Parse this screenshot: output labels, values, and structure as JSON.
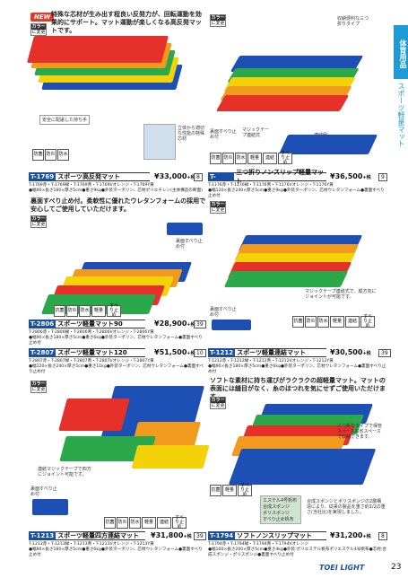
{
  "sidebar": {
    "tab": "体育用品",
    "text": "スポーツ軽量マット"
  },
  "badges": {
    "new": "NEW",
    "color": "カラー",
    "color_sub": "に変更"
  },
  "p1769": {
    "lead": "特殊な芯材が生み出す程良い反発力が、回転運動を効果的にサポート。マット運動が楽しくなる高反発マットです。",
    "caption1": "安全に配慮した持ち手",
    "caption2": "立体から適切な性能の特殊芯材",
    "icons": [
      "防菌",
      "防炎",
      "防水"
    ],
    "code": "T-1769",
    "name": "スポーツ高反発マット",
    "price": "¥33,000",
    "tax": "+税",
    "page": "8",
    "spec1": "T-1769赤・T-1769緑・T-1769青・T-1769Vオレンジ・T-1769Y黄",
    "spec2": "●幅90×長さ180×厚さ5cm●重さ9kg●外装ターポリン、芯材ポリエチレン(主体構造の断面)"
  },
  "p1176": {
    "caption1": "収納便利な三つ折りタイプ",
    "caption2": "裏面すべり止め付",
    "caption3": "マジックテープ連結式",
    "caption4": "連結例",
    "icons": [
      "防菌",
      "防炎",
      "防水",
      "軽量",
      "連結",
      "すべり止め"
    ],
    "code": "T-1176",
    "name": "三つ折りノンスリップ軽量マット",
    "price": "¥36,500",
    "tax": "+税",
    "page": "9",
    "spec1": "T-1176赤・T-1176緑・T-1176青・T-1176Vオレンジ・T-1176Y黄",
    "spec2": "●幅120×長さ240×厚さ5cm●重さ9kg●外装ターポリン、芯材ウレタンフォーム●裏面すべり止め付"
  },
  "p2806": {
    "lead": "裏面すべり止め付。柔軟性に優れたウレタンフォームの採用で安心してご使用していただけます。",
    "caption1": "裏面すべり止め付",
    "icons": [
      "抗菌",
      "防炎",
      "防水",
      "軽量",
      "すべり止め"
    ],
    "code": "T-2806",
    "name": "スポーツ軽量マット90",
    "price": "¥28,900",
    "tax": "+税",
    "page": "39",
    "spec1": "T-2806赤・T-2806緑・T-2806青・T-2806Vオレンジ・T-2806Y黄",
    "spec2": "●幅90×長さ180×厚さ5cm●重さ6kg●外装ターポリン、芯材ウレタンフォーム●裏面すべり止め付"
  },
  "p2807": {
    "code": "T-2807",
    "name": "スポーツ軽量マット120",
    "price": "¥51,500",
    "tax": "+税",
    "page": "10",
    "spec1": "T-2807赤・T-2807緑・T-2807青・T-2807Vオレンジ・T-2807Y黄",
    "spec2": "●幅120×長さ240×厚さ5cm●重さ11kg●外装ターポリン、芯材ウレタンフォーム●裏面すべり止め付"
  },
  "p1212": {
    "caption1": "マジックテープ連結式で、縦方向にジョイントが可能です。",
    "caption2": "裏面すべり止め付",
    "icons": [
      "抗菌",
      "防炎",
      "防水",
      "軽量",
      "連結",
      "すべり止め"
    ],
    "code": "T-1212",
    "name": "スポーツ軽量連結マット",
    "price": "¥30,500",
    "tax": "+税",
    "page": "39",
    "spec1": "T-1212赤・T-1212緑・T-1212青・T-1212Vオレンジ・T-1212Y黄",
    "spec2": "●幅90×長さ180×厚さ5cm●重さ6kg●外装ターポリン、芯材ウレタンフォーム●裏面すべり止め付"
  },
  "p1213": {
    "caption1": "連結マジックテープで四方にジョイント可能です。",
    "caption2": "裏面すべり止め付",
    "icons": [
      "抗菌",
      "防炎",
      "防水",
      "軽量",
      "連結",
      "すべり止め"
    ],
    "code": "T-1213",
    "name": "スポーツ軽量四方連結マット",
    "price": "¥31,800",
    "tax": "+税",
    "page": "39",
    "spec1": "T-1213赤・T-1213緑・T-1213青・T-1213Vオレンジ・T-1213Y黄",
    "spec2": "●幅90×長さ180×厚さ5cm●重さ6kg●外装ターポリン、芯材ウレタンフォーム●裏面すべり止め付"
  },
  "p1794": {
    "lead": "ソフトな素材に持ち運びがラクラクの超軽量マット。マットの表面には縫目がなく、糸のほつれを気にせずご使用いただけます。",
    "caption1": "三つ折りタイプで保管スペースも省スペースで収納できます。",
    "caption2": "エステル4号帆布",
    "caption3": "合成スポンジ",
    "caption4": "ポリスポンジ",
    "caption5": "すべり止め帆布",
    "caption6": "合成スポンジとポリスポンジの2層構造により、従来の製品を重さ約1/2の重さ(当社比)を実現しました。",
    "icons": [
      "抗菌",
      "軽量",
      "すべり止め"
    ],
    "code": "T-1794",
    "name": "ソフトノンスリップマット",
    "price": "¥31,200",
    "tax": "+税",
    "page": "8",
    "spec1": "T-1794赤・T-1794緑・T-1794青・T-1794Vオレンジ",
    "spec2": "●幅100×長さ200×厚さ5cm●重さ4kg●外装:ポリエステル帆布ポリエステル4号帆布●芯材:合成スポンジ・ポリスポンジ●裏面すべり止め付"
  },
  "footer": {
    "brand": "TOEI LIGHT",
    "page_number": "23"
  },
  "colors": {
    "red": "#e5312a",
    "green": "#2aa84a",
    "blue": "#1e4fb5",
    "orange": "#f29a1e",
    "yellow": "#f3d20a",
    "accent": "#1d9bd7"
  }
}
